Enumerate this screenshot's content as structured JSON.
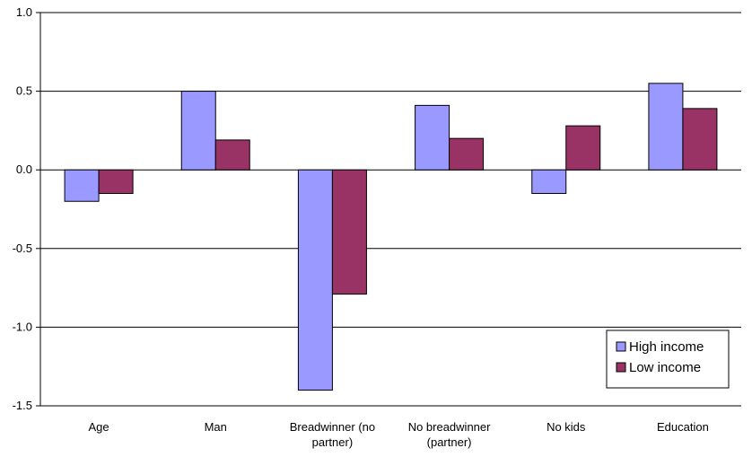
{
  "chart_data": {
    "type": "bar",
    "title": "",
    "xlabel": "",
    "ylabel": "",
    "ylim": [
      -1.5,
      1.0
    ],
    "yticks": [
      1.0,
      0.5,
      0.0,
      -0.5,
      -1.0,
      -1.5
    ],
    "ytick_labels": [
      "1.0",
      "0.5",
      "0.0",
      "-0.5",
      "-1.0",
      "-1.5"
    ],
    "grid": "horizontal",
    "legend_position": "bottom-right",
    "categories": [
      [
        "Age"
      ],
      [
        "Man"
      ],
      [
        "Breadwinner (no",
        "partner)"
      ],
      [
        "No breadwinner",
        "(partner)"
      ],
      [
        "No kids"
      ],
      [
        "Education"
      ]
    ],
    "series": [
      {
        "name": "High income",
        "color": "#9999ff",
        "values": [
          -0.2,
          0.5,
          -1.4,
          0.41,
          -0.15,
          0.55
        ]
      },
      {
        "name": "Low income",
        "color": "#993366",
        "values": [
          -0.15,
          0.19,
          -0.79,
          0.2,
          0.28,
          0.39
        ]
      }
    ]
  }
}
